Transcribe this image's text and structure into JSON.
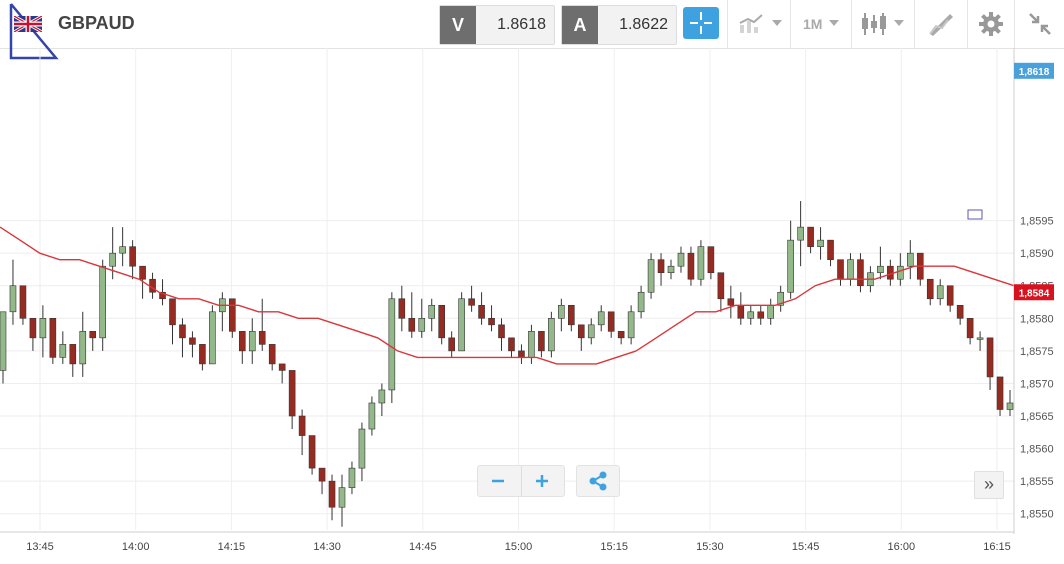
{
  "header": {
    "symbol": "GBPAUD",
    "sell": {
      "label": "V",
      "value": "1.8618"
    },
    "buy": {
      "label": "A",
      "value": "1.8622"
    },
    "timeframe": "1M"
  },
  "icons": [
    "uk-flag-icon",
    "draw-triangle-icon",
    "crosshair-icon",
    "chart-type-icon",
    "timeframe-icon",
    "candlestick-icon",
    "drawing-tool-icon",
    "gear-icon",
    "minimize-icon",
    "zoom-out-icon",
    "zoom-in-icon",
    "share-icon",
    "fast-forward-icon"
  ],
  "colors": {
    "up": "#93b98a",
    "down": "#962c21",
    "ma": "#d9363b",
    "current_price_badge": "#4aa0da",
    "accent": "#3fa2e0"
  },
  "chart_data": {
    "type": "candlestick",
    "y_ticks": [
      "1,8595",
      "1,8590",
      "1,8585",
      "1,8580",
      "1,8575",
      "1,8570",
      "1,8565",
      "1,8560",
      "1,8555",
      "1,8550"
    ],
    "x_ticks": [
      "13:45",
      "14:00",
      "14:15",
      "14:30",
      "14:45",
      "15:00",
      "15:15",
      "15:30",
      "15:45",
      "16:00",
      "16:15"
    ],
    "ylim": [
      1.85475,
      1.86215
    ],
    "current_price": {
      "value": 1.8618,
      "label": "1,8618"
    },
    "ma_price": {
      "value": 1.8584,
      "label": "1,8584"
    },
    "candles": [
      [
        1.8572,
        1.8581,
        1.857,
        1.8581
      ],
      [
        1.8581,
        1.8589,
        1.8579,
        1.8585
      ],
      [
        1.8585,
        1.8585,
        1.8579,
        1.858
      ],
      [
        1.858,
        1.858,
        1.8575,
        1.8577
      ],
      [
        1.8577,
        1.8582,
        1.8574,
        1.858
      ],
      [
        1.858,
        1.858,
        1.8573,
        1.8574
      ],
      [
        1.8574,
        1.8578,
        1.8573,
        1.8576
      ],
      [
        1.8576,
        1.8576,
        1.8571,
        1.8573
      ],
      [
        1.8573,
        1.8581,
        1.8571,
        1.8578
      ],
      [
        1.8578,
        1.8578,
        1.8575,
        1.8577
      ],
      [
        1.8577,
        1.8589,
        1.8575,
        1.8588
      ],
      [
        1.8588,
        1.8594,
        1.8586,
        1.859
      ],
      [
        1.859,
        1.8594,
        1.8588,
        1.8591
      ],
      [
        1.8591,
        1.8592,
        1.8586,
        1.8588
      ],
      [
        1.8588,
        1.8588,
        1.8583,
        1.8586
      ],
      [
        1.8586,
        1.8587,
        1.8583,
        1.8584
      ],
      [
        1.8584,
        1.8586,
        1.8582,
        1.8583
      ],
      [
        1.8583,
        1.8583,
        1.8576,
        1.8579
      ],
      [
        1.8579,
        1.858,
        1.8574,
        1.8577
      ],
      [
        1.8577,
        1.8578,
        1.8574,
        1.8576
      ],
      [
        1.8576,
        1.8576,
        1.8572,
        1.8573
      ],
      [
        1.8573,
        1.8582,
        1.8573,
        1.8581
      ],
      [
        1.8581,
        1.8584,
        1.8578,
        1.8583
      ],
      [
        1.8583,
        1.8583,
        1.8577,
        1.8578
      ],
      [
        1.8578,
        1.8578,
        1.8573,
        1.8575
      ],
      [
        1.8575,
        1.858,
        1.8573,
        1.8578
      ],
      [
        1.8578,
        1.8583,
        1.8575,
        1.8576
      ],
      [
        1.8576,
        1.8576,
        1.8572,
        1.8573
      ],
      [
        1.8573,
        1.8573,
        1.857,
        1.8572
      ],
      [
        1.8572,
        1.8572,
        1.8563,
        1.8565
      ],
      [
        1.8565,
        1.8566,
        1.8559,
        1.8562
      ],
      [
        1.8562,
        1.8562,
        1.8556,
        1.8557
      ],
      [
        1.8557,
        1.8557,
        1.8553,
        1.8555
      ],
      [
        1.8555,
        1.8556,
        1.8549,
        1.8551
      ],
      [
        1.8551,
        1.8556,
        1.8548,
        1.8554
      ],
      [
        1.8554,
        1.8558,
        1.8553,
        1.8557
      ],
      [
        1.8557,
        1.8564,
        1.8555,
        1.8563
      ],
      [
        1.8563,
        1.8568,
        1.8562,
        1.8567
      ],
      [
        1.8567,
        1.857,
        1.8565,
        1.8569
      ],
      [
        1.8569,
        1.8584,
        1.8567,
        1.8583
      ],
      [
        1.8583,
        1.8585,
        1.8578,
        1.858
      ],
      [
        1.858,
        1.8584,
        1.8577,
        1.8578
      ],
      [
        1.8578,
        1.8583,
        1.8577,
        1.858
      ],
      [
        1.858,
        1.8583,
        1.8578,
        1.8582
      ],
      [
        1.8582,
        1.8582,
        1.8576,
        1.8577
      ],
      [
        1.8577,
        1.8578,
        1.8574,
        1.8575
      ],
      [
        1.8575,
        1.8584,
        1.8575,
        1.8583
      ],
      [
        1.8583,
        1.8585,
        1.8581,
        1.8582
      ],
      [
        1.8582,
        1.8584,
        1.8579,
        1.858
      ],
      [
        1.858,
        1.8582,
        1.8578,
        1.8579
      ],
      [
        1.8579,
        1.858,
        1.8575,
        1.8577
      ],
      [
        1.8577,
        1.8577,
        1.8574,
        1.8575
      ],
      [
        1.8575,
        1.8576,
        1.8573,
        1.8574
      ],
      [
        1.8574,
        1.8579,
        1.8573,
        1.8578
      ],
      [
        1.8578,
        1.8578,
        1.8574,
        1.8575
      ],
      [
        1.8575,
        1.8581,
        1.8574,
        1.858
      ],
      [
        1.858,
        1.8583,
        1.8578,
        1.8582
      ],
      [
        1.8582,
        1.8582,
        1.8578,
        1.8579
      ],
      [
        1.8579,
        1.8579,
        1.8575,
        1.8577
      ],
      [
        1.8577,
        1.858,
        1.8576,
        1.8579
      ],
      [
        1.8579,
        1.8582,
        1.8578,
        1.8581
      ],
      [
        1.8581,
        1.8581,
        1.8577,
        1.8578
      ],
      [
        1.8578,
        1.8578,
        1.8576,
        1.8577
      ],
      [
        1.8577,
        1.8582,
        1.8576,
        1.8581
      ],
      [
        1.8581,
        1.8585,
        1.858,
        1.8584
      ],
      [
        1.8584,
        1.859,
        1.8583,
        1.8589
      ],
      [
        1.8589,
        1.859,
        1.8585,
        1.8587
      ],
      [
        1.8587,
        1.8589,
        1.8586,
        1.8588
      ],
      [
        1.8588,
        1.8591,
        1.8587,
        1.859
      ],
      [
        1.859,
        1.8591,
        1.8585,
        1.8586
      ],
      [
        1.8586,
        1.8592,
        1.8585,
        1.8591
      ],
      [
        1.8591,
        1.8591,
        1.8586,
        1.8587
      ],
      [
        1.8587,
        1.8587,
        1.8581,
        1.8583
      ],
      [
        1.8583,
        1.8585,
        1.858,
        1.8582
      ],
      [
        1.8582,
        1.8584,
        1.8579,
        1.858
      ],
      [
        1.858,
        1.8582,
        1.8579,
        1.8581
      ],
      [
        1.8581,
        1.8582,
        1.8579,
        1.858
      ],
      [
        1.858,
        1.8583,
        1.8579,
        1.8582
      ],
      [
        1.8582,
        1.8585,
        1.8581,
        1.8584
      ],
      [
        1.8584,
        1.8595,
        1.8583,
        1.8592
      ],
      [
        1.8592,
        1.8598,
        1.8588,
        1.8594
      ],
      [
        1.8594,
        1.8594,
        1.859,
        1.8591
      ],
      [
        1.8591,
        1.8594,
        1.8589,
        1.8592
      ],
      [
        1.8592,
        1.8592,
        1.8588,
        1.8589
      ],
      [
        1.8589,
        1.8589,
        1.8585,
        1.8586
      ],
      [
        1.8586,
        1.859,
        1.8585,
        1.8589
      ],
      [
        1.8589,
        1.859,
        1.8584,
        1.8585
      ],
      [
        1.8585,
        1.8588,
        1.8584,
        1.8587
      ],
      [
        1.8587,
        1.8591,
        1.8586,
        1.8588
      ],
      [
        1.8588,
        1.8589,
        1.8585,
        1.8586
      ],
      [
        1.8586,
        1.859,
        1.8585,
        1.8588
      ],
      [
        1.8588,
        1.8592,
        1.8586,
        1.859
      ],
      [
        1.859,
        1.859,
        1.8585,
        1.8586
      ],
      [
        1.8586,
        1.8586,
        1.8582,
        1.8583
      ],
      [
        1.8583,
        1.8586,
        1.8582,
        1.8585
      ],
      [
        1.8585,
        1.8585,
        1.8581,
        1.8582
      ],
      [
        1.8582,
        1.8582,
        1.8579,
        1.858
      ],
      [
        1.858,
        1.858,
        1.8576,
        1.8577
      ],
      [
        1.8577,
        1.8578,
        1.8575,
        1.8577
      ],
      [
        1.8577,
        1.8577,
        1.8569,
        1.8571
      ],
      [
        1.8571,
        1.8571,
        1.8565,
        1.8566
      ],
      [
        1.8566,
        1.8569,
        1.8565,
        1.8567
      ]
    ]
  },
  "ma_series": [
    1.8594,
    1.8592,
    1.859,
    1.8589,
    1.8589,
    1.8588,
    1.8587,
    1.8586,
    1.8584,
    1.8583,
    1.8583,
    1.8582,
    1.8582,
    1.8581,
    1.8581,
    1.858,
    1.858,
    1.8579,
    1.8578,
    1.8577,
    1.8575,
    1.8574,
    1.8574,
    1.8574,
    1.8574,
    1.8574,
    1.8574,
    1.8574,
    1.8573,
    1.8573,
    1.8573,
    1.8574,
    1.8575,
    1.8577,
    1.8579,
    1.8581,
    1.8581,
    1.8582,
    1.8582,
    1.8582,
    1.8583,
    1.8585,
    1.8586,
    1.8586,
    1.8586,
    1.8587,
    1.8588,
    1.8588,
    1.8588,
    1.8587,
    1.8586,
    1.8585
  ]
}
